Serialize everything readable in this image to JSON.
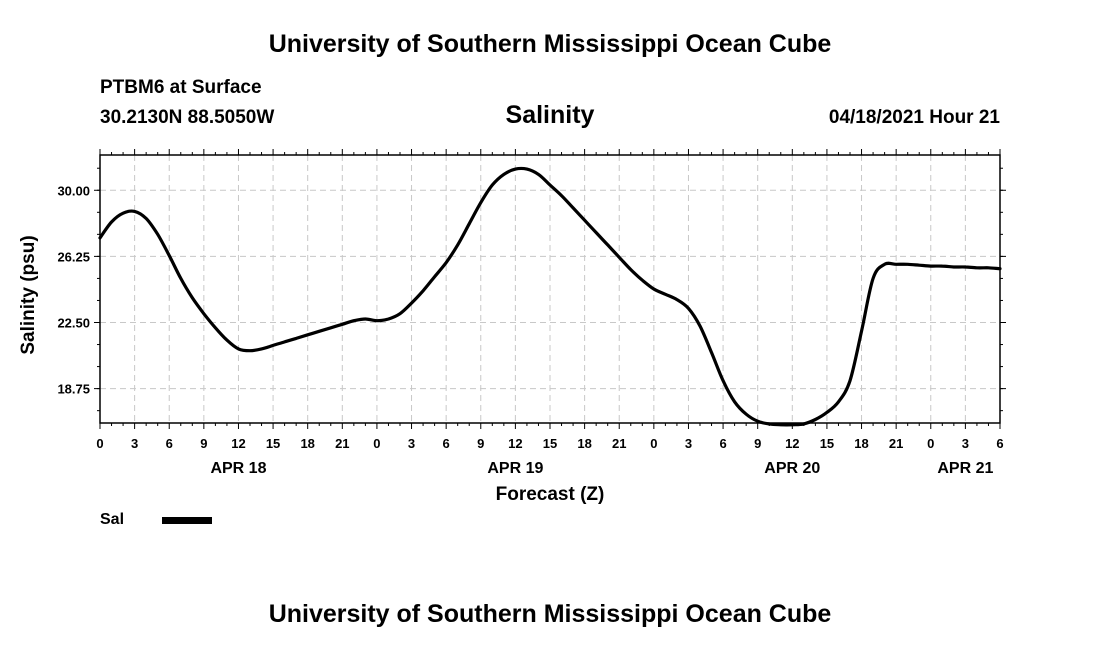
{
  "header": {
    "title": "University of Southern Mississippi Ocean Cube",
    "station": "PTBM6 at Surface",
    "coords": "30.2130N  88.5050W",
    "valid_time": "04/18/2021 Hour 21"
  },
  "footer": {
    "title": "University of Southern Mississippi Ocean Cube"
  },
  "legend": {
    "label": "Sal",
    "color": "#000000"
  },
  "chart_data": {
    "type": "line",
    "title": "Salinity",
    "xlabel": "Forecast (Z)",
    "ylabel": "Salinity (psu)",
    "xlim": [
      0,
      78
    ],
    "ylim": [
      16.8,
      32.0
    ],
    "grid": true,
    "x_ticks": [
      0,
      3,
      6,
      9,
      12,
      15,
      18,
      21,
      24,
      27,
      30,
      33,
      36,
      39,
      42,
      45,
      48,
      51,
      54,
      57,
      60,
      63,
      66,
      69,
      72,
      75,
      78
    ],
    "x_tick_labels": [
      "0",
      "3",
      "6",
      "9",
      "12",
      "15",
      "18",
      "21",
      "0",
      "3",
      "6",
      "9",
      "12",
      "15",
      "18",
      "21",
      "0",
      "3",
      "6",
      "9",
      "12",
      "15",
      "18",
      "21",
      "0",
      "3",
      "6"
    ],
    "date_labels": [
      {
        "x": 12,
        "label": "APR 18"
      },
      {
        "x": 36,
        "label": "APR 19"
      },
      {
        "x": 60,
        "label": "APR 20"
      },
      {
        "x": 75,
        "label": "APR 21"
      }
    ],
    "y_ticks": [
      18.75,
      22.5,
      26.25,
      30.0
    ],
    "y_tick_labels": [
      "18.75",
      "22.50",
      "26.25",
      "30.00"
    ],
    "series": [
      {
        "name": "Sal",
        "x": [
          0,
          1,
          2,
          3,
          4,
          5,
          6,
          7,
          8,
          9,
          10,
          11,
          12,
          13,
          14,
          15,
          16,
          17,
          18,
          19,
          20,
          21,
          22,
          23,
          24,
          25,
          26,
          27,
          28,
          29,
          30,
          31,
          32,
          33,
          34,
          35,
          36,
          37,
          38,
          39,
          40,
          41,
          42,
          43,
          44,
          45,
          46,
          47,
          48,
          49,
          50,
          51,
          52,
          53,
          54,
          55,
          56,
          57,
          58,
          59,
          60,
          61,
          62,
          63,
          64,
          65,
          66,
          67,
          68,
          69,
          70,
          71,
          72,
          73,
          74,
          75,
          76,
          77,
          78
        ],
        "values": [
          27.3,
          28.2,
          28.7,
          28.8,
          28.4,
          27.5,
          26.3,
          25.0,
          23.9,
          23.0,
          22.2,
          21.5,
          21.0,
          20.9,
          21.0,
          21.2,
          21.4,
          21.6,
          21.8,
          22.0,
          22.2,
          22.4,
          22.6,
          22.7,
          22.6,
          22.7,
          23.0,
          23.6,
          24.3,
          25.1,
          25.9,
          26.9,
          28.1,
          29.3,
          30.3,
          30.9,
          31.2,
          31.2,
          30.9,
          30.3,
          29.7,
          29.0,
          28.3,
          27.6,
          26.9,
          26.2,
          25.5,
          24.9,
          24.4,
          24.1,
          23.8,
          23.3,
          22.3,
          20.8,
          19.2,
          18.0,
          17.3,
          16.9,
          16.75,
          16.7,
          16.7,
          16.75,
          17.0,
          17.4,
          18.0,
          19.2,
          22.0,
          25.0,
          25.8,
          25.8,
          25.8,
          25.75,
          25.7,
          25.7,
          25.65,
          25.65,
          25.6,
          25.6,
          25.55
        ]
      }
    ]
  }
}
